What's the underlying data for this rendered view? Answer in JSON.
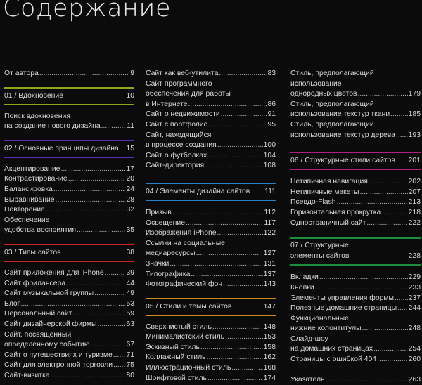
{
  "title": "Содержание",
  "columns": [
    [
      {
        "type": "entry",
        "lines": [
          "От автора"
        ],
        "page": "9"
      },
      {
        "type": "section",
        "label": "01 / Вдохновение",
        "page": "10",
        "color": "#8fa51c"
      },
      {
        "type": "entry",
        "lines": [
          "Поиск вдохновения",
          "на создание нового дизайна"
        ],
        "page": "11"
      },
      {
        "type": "section",
        "label": "02 / Основные принципы дизайна",
        "page": "15",
        "color": "#5a2db4"
      },
      {
        "type": "entry",
        "lines": [
          "Акцентирование"
        ],
        "page": "17"
      },
      {
        "type": "entry",
        "lines": [
          "Контрастирование"
        ],
        "page": "20"
      },
      {
        "type": "entry",
        "lines": [
          "Балансировка"
        ],
        "page": "24"
      },
      {
        "type": "entry",
        "lines": [
          "Выравнивание"
        ],
        "page": "28"
      },
      {
        "type": "entry",
        "lines": [
          "Повторение"
        ],
        "page": "32"
      },
      {
        "type": "entry",
        "lines": [
          "Обеспечение",
          "удобства восприятия"
        ],
        "page": "35"
      },
      {
        "type": "section",
        "label": "03 / Типы сайтов",
        "page": "38",
        "color": "#c8231c"
      },
      {
        "type": "entry",
        "lines": [
          "Сайт приложения для iPhone"
        ],
        "page": "39"
      },
      {
        "type": "entry",
        "lines": [
          "Сайт фрилансера"
        ],
        "page": "44"
      },
      {
        "type": "entry",
        "lines": [
          "Сайт музыкальной группы"
        ],
        "page": "49"
      },
      {
        "type": "entry",
        "lines": [
          "Блог"
        ],
        "page": "53"
      },
      {
        "type": "entry",
        "lines": [
          "Персональный сайт"
        ],
        "page": "59"
      },
      {
        "type": "entry",
        "lines": [
          "Сайт дизайнерской фирмы"
        ],
        "page": "63"
      },
      {
        "type": "entry",
        "lines": [
          "Сайт, посвященный",
          "определенному событию"
        ],
        "page": "67"
      },
      {
        "type": "entry",
        "lines": [
          "Сайт о путешествиях и туризме"
        ],
        "page": "71"
      },
      {
        "type": "entry",
        "lines": [
          "Сайт для электронной торговли"
        ],
        "page": "75"
      },
      {
        "type": "entry",
        "lines": [
          "Сайт-визитка"
        ],
        "page": "80"
      }
    ],
    [
      {
        "type": "entry",
        "lines": [
          "Сайт как веб-утилита"
        ],
        "page": "83"
      },
      {
        "type": "entry",
        "lines": [
          "Сайт программного",
          "обеспечения для работы",
          "в Интернете"
        ],
        "page": "86"
      },
      {
        "type": "entry",
        "lines": [
          "Сайт о недвижимости"
        ],
        "page": "91"
      },
      {
        "type": "entry",
        "lines": [
          "Сайт с портфолио"
        ],
        "page": "95"
      },
      {
        "type": "entry",
        "lines": [
          "Сайт, находящийся",
          "в процессе создания"
        ],
        "page": "100"
      },
      {
        "type": "entry",
        "lines": [
          "Сайт о футболках"
        ],
        "page": "104"
      },
      {
        "type": "entry",
        "lines": [
          "Сайт-директория"
        ],
        "page": "108"
      },
      {
        "type": "section",
        "label": "04 / Элементы дизайна сайтов",
        "page": "111",
        "color": "#2a80c4",
        "big": true
      },
      {
        "type": "entry",
        "lines": [
          "Призыв"
        ],
        "page": "112"
      },
      {
        "type": "entry",
        "lines": [
          "Освещение"
        ],
        "page": "117"
      },
      {
        "type": "entry",
        "lines": [
          "Изображения iPhone"
        ],
        "page": "122"
      },
      {
        "type": "entry",
        "lines": [
          "Ссылки на социальные",
          "медиаресурсы"
        ],
        "page": "127"
      },
      {
        "type": "entry",
        "lines": [
          "Значки"
        ],
        "page": "131"
      },
      {
        "type": "entry",
        "lines": [
          "Типографика"
        ],
        "page": "137"
      },
      {
        "type": "entry",
        "lines": [
          "Фотографический фон"
        ],
        "page": "143"
      },
      {
        "type": "section",
        "label": "05 / Стили и темы сайтов",
        "page": "147",
        "color": "#c98b1c"
      },
      {
        "type": "entry",
        "lines": [
          "Сверхчистый стиль"
        ],
        "page": "148"
      },
      {
        "type": "entry",
        "lines": [
          "Минималистский стиль"
        ],
        "page": "153"
      },
      {
        "type": "entry",
        "lines": [
          "Эскизный стиль"
        ],
        "page": "158"
      },
      {
        "type": "entry",
        "lines": [
          "Коллажный стиль"
        ],
        "page": "162"
      },
      {
        "type": "entry",
        "lines": [
          "Иллюстрационный стиль"
        ],
        "page": "168"
      },
      {
        "type": "entry",
        "lines": [
          "Шрифтовой стиль"
        ],
        "page": "174"
      }
    ],
    [
      {
        "type": "entry",
        "lines": [
          "Стиль, предполагающий",
          "использование",
          "однородных цветов"
        ],
        "page": "179"
      },
      {
        "type": "entry",
        "lines": [
          "Стиль, предполагающий",
          "использование текстур ткани"
        ],
        "page": "185"
      },
      {
        "type": "entry",
        "lines": [
          "Стиль, предполагающий",
          "использование текстур дерева"
        ],
        "page": "193"
      },
      {
        "type": "section",
        "label": "06 / Структурные стили сайтов",
        "page": "201",
        "color": "#b02080",
        "big": true
      },
      {
        "type": "entry",
        "lines": [
          "Нетипичная навигация"
        ],
        "page": "202"
      },
      {
        "type": "entry",
        "lines": [
          "Нетипичные макеты"
        ],
        "page": "207"
      },
      {
        "type": "entry",
        "lines": [
          "Псевдо-Flash"
        ],
        "page": "213"
      },
      {
        "type": "entry",
        "lines": [
          "Горизонтальная прокрутка"
        ],
        "page": "218"
      },
      {
        "type": "entry",
        "lines": [
          "Одностраничный сайт"
        ],
        "page": "222"
      },
      {
        "type": "section2",
        "lines": [
          "07 / Структурные",
          "элементы сайтов"
        ],
        "page": "228",
        "color": "#1c8f3c"
      },
      {
        "type": "entry",
        "lines": [
          "Вкладки"
        ],
        "page": "229"
      },
      {
        "type": "entry",
        "lines": [
          "Кнопки"
        ],
        "page": "233"
      },
      {
        "type": "entry",
        "lines": [
          "Элементы управления формы"
        ],
        "page": "237"
      },
      {
        "type": "entry",
        "lines": [
          "Полезные домашние страницы"
        ],
        "page": "244"
      },
      {
        "type": "entry",
        "lines": [
          "Функциональные",
          "нижние колонтитулы"
        ],
        "page": "248"
      },
      {
        "type": "entry",
        "lines": [
          "Слайд-шоу",
          "на домашних страницах"
        ],
        "page": "254"
      },
      {
        "type": "entry",
        "lines": [
          "Страницы с ошибкой 404"
        ],
        "page": "260"
      },
      {
        "type": "gap"
      },
      {
        "type": "entry",
        "lines": [
          "Указатель"
        ],
        "page": "263"
      }
    ]
  ]
}
